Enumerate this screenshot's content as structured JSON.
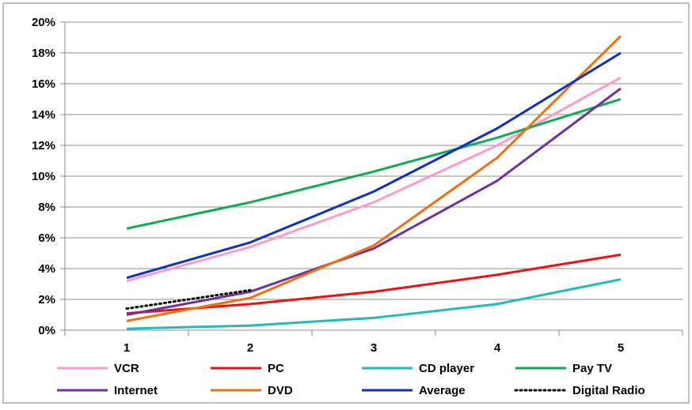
{
  "chart_data": {
    "type": "line",
    "title": "",
    "xlabel": "",
    "ylabel": "",
    "x": [
      1,
      2,
      3,
      4,
      5
    ],
    "ylim": [
      0,
      20
    ],
    "y_ticks": [
      "0%",
      "2%",
      "4%",
      "6%",
      "8%",
      "10%",
      "12%",
      "14%",
      "16%",
      "18%",
      "20%"
    ],
    "grid": "horizontal",
    "legend_position": "bottom",
    "series": [
      {
        "name": "VCR",
        "color": "#ff99cc",
        "dash": "solid",
        "values": [
          3.2,
          5.4,
          8.3,
          12.0,
          16.4
        ]
      },
      {
        "name": "PC",
        "color": "#ee1111",
        "dash": "solid",
        "values": [
          1.1,
          1.7,
          2.5,
          3.6,
          4.9
        ]
      },
      {
        "name": "CD player",
        "color": "#22bbbb",
        "dash": "solid",
        "values": [
          0.1,
          0.3,
          0.8,
          1.7,
          3.3
        ]
      },
      {
        "name": "Pay TV",
        "color": "#11aa55",
        "dash": "solid",
        "values": [
          6.6,
          8.3,
          10.3,
          12.5,
          15.0
        ]
      },
      {
        "name": "Internet",
        "color": "#7030a0",
        "dash": "solid",
        "values": [
          1.0,
          2.5,
          5.3,
          9.7,
          15.7
        ]
      },
      {
        "name": "DVD",
        "color": "#f07010",
        "dash": "solid",
        "values": [
          0.6,
          2.1,
          5.5,
          11.2,
          19.1
        ]
      },
      {
        "name": "Average",
        "color": "#1030c0",
        "dash": "solid",
        "values": [
          3.4,
          5.7,
          9.0,
          13.1,
          18.0
        ]
      },
      {
        "name": "Digital Radio",
        "color": "#000000",
        "dash": "dotted",
        "values": [
          1.4,
          2.6,
          null,
          null,
          null
        ]
      }
    ]
  }
}
